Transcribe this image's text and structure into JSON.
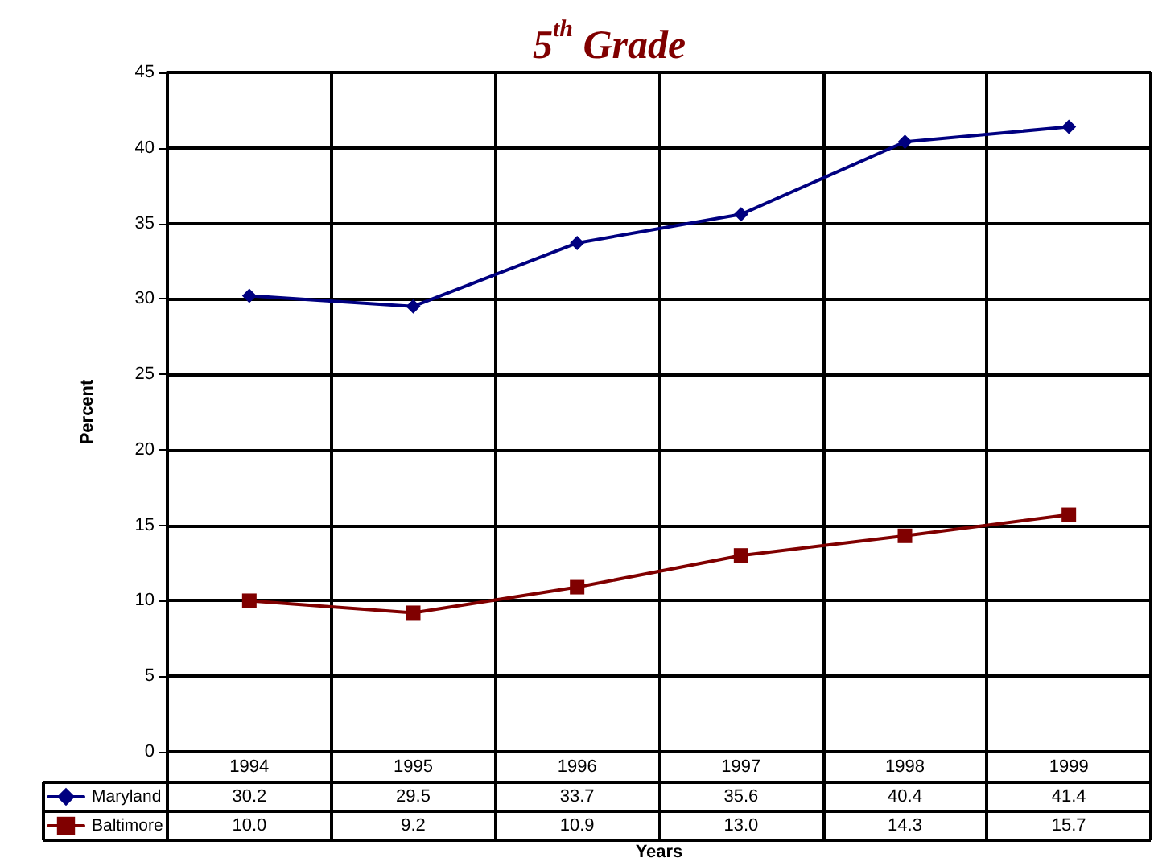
{
  "chart_data": {
    "type": "line",
    "title": "5$^{th}$ Grade",
    "xlabel": "Years",
    "ylabel": "Percent",
    "categories": [
      "1994",
      "1995",
      "1996",
      "1997",
      "1998",
      "1999"
    ],
    "series": [
      {
        "name": "Maryland",
        "color": "#000080",
        "marker": "diamond",
        "values": [
          30.2,
          29.5,
          33.7,
          35.6,
          40.4,
          41.4
        ],
        "value_labels": [
          "30.2",
          "29.5",
          "33.7",
          "35.6",
          "40.4",
          "41.4"
        ]
      },
      {
        "name": "Baltimore",
        "color": "#800000",
        "marker": "square",
        "values": [
          10.0,
          9.2,
          10.9,
          13.0,
          14.3,
          15.7
        ],
        "value_labels": [
          "10.0",
          "9.2",
          "10.9",
          "13.0",
          "14.3",
          "15.7"
        ]
      }
    ],
    "ylim": [
      0,
      45
    ],
    "yticks": [
      0,
      5,
      10,
      15,
      20,
      25,
      30,
      35,
      40,
      45
    ],
    "grid": true,
    "legend": "bottom left",
    "line_style": "solid"
  }
}
